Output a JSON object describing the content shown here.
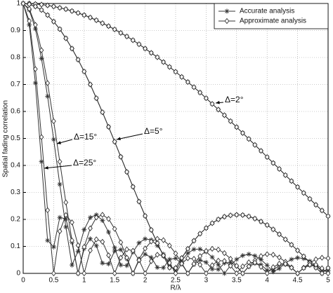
{
  "chart_data": {
    "type": "line",
    "xlabel": "R/λ",
    "ylabel": "Spatial fading correlation",
    "x": [
      0,
      0.1,
      0.2,
      0.3,
      0.4,
      0.5,
      0.6,
      0.7,
      0.8,
      0.9,
      1,
      1.1,
      1.2,
      1.3,
      1.4,
      1.5,
      1.6,
      1.7,
      1.8,
      1.9,
      2,
      2.1,
      2.2,
      2.3,
      2.4,
      2.5,
      2.6,
      2.7,
      2.8,
      2.9,
      3,
      3.1,
      3.2,
      3.3,
      3.4,
      3.5,
      3.6,
      3.7,
      3.8,
      3.9,
      4,
      4.1,
      4.2,
      4.3,
      4.4,
      4.5,
      4.6,
      4.7,
      4.8,
      4.9,
      5
    ],
    "xlim": [
      0,
      5
    ],
    "ylim": [
      0,
      1
    ],
    "xticks": [
      0,
      0.5,
      1,
      1.5,
      2,
      2.5,
      3,
      3.5,
      4,
      4.5,
      5
    ],
    "yticks": [
      0,
      0.1,
      0.2,
      0.3,
      0.4,
      0.5,
      0.6,
      0.7,
      0.8,
      0.9,
      1
    ],
    "grid": true,
    "legend": "upper right",
    "annotations": [
      "Δ=2°",
      "Δ=5°",
      "Δ=15°",
      "Δ=25°"
    ],
    "series": [
      {
        "name": "Accurate analysis",
        "marker": "asterisk",
        "color": "#333333",
        "values": [
          1,
          1,
          0.998,
          0.996,
          0.993,
          0.989,
          0.984,
          0.979,
          0.972,
          0.965,
          0.957,
          0.948,
          0.938,
          0.927,
          0.916,
          0.904,
          0.891,
          0.878,
          0.864,
          0.849,
          0.833,
          0.817,
          0.801,
          0.783,
          0.765,
          0.747,
          0.728,
          0.709,
          0.69,
          0.67,
          0.649,
          0.628,
          0.607,
          0.586,
          0.564,
          0.542,
          0.52,
          0.498,
          0.476,
          0.454,
          0.431,
          0.409,
          0.387,
          0.364,
          0.342,
          0.32,
          0.298,
          0.276,
          0.254,
          0.233,
          0.212
        ]
      },
      {
        "name": "Accurate analysis",
        "marker": "asterisk",
        "color": "#333333",
        "values": [
          1,
          0.997,
          0.989,
          0.976,
          0.957,
          0.933,
          0.905,
          0.871,
          0.833,
          0.792,
          0.748,
          0.7,
          0.649,
          0.597,
          0.543,
          0.488,
          0.432,
          0.376,
          0.321,
          0.266,
          0.213,
          0.161,
          0.112,
          0.065,
          0.021,
          0.02,
          0.057,
          0.091,
          0.121,
          0.147,
          0.168,
          0.186,
          0.2,
          0.21,
          0.215,
          0.217,
          0.216,
          0.211,
          0.203,
          0.192,
          0.179,
          0.163,
          0.145,
          0.126,
          0.106,
          0.085,
          0.063,
          0.041,
          0.021,
          0,
          0.02
        ]
      },
      {
        "name": "Accurate analysis",
        "marker": "asterisk",
        "color": "#333333",
        "values": [
          1,
          0.976,
          0.906,
          0.796,
          0.656,
          0.496,
          0.33,
          0.172,
          0.031,
          0.082,
          0.162,
          0.207,
          0.217,
          0.196,
          0.153,
          0.095,
          0.031,
          0.029,
          0.079,
          0.113,
          0.128,
          0.124,
          0.103,
          0.071,
          0.031,
          0.01,
          0.047,
          0.075,
          0.089,
          0.09,
          0.08,
          0.06,
          0.032,
          0,
          0.029,
          0.052,
          0.066,
          0.071,
          0.065,
          0.051,
          0.03,
          0.006,
          0.018,
          0.038,
          0.052,
          0.058,
          0.055,
          0.045,
          0.03,
          0.01,
          0.01
        ]
      },
      {
        "name": "Accurate analysis",
        "marker": "asterisk",
        "color": "#333333",
        "values": [
          1,
          0.921,
          0.705,
          0.414,
          0.122,
          0.098,
          0.207,
          0.202,
          0.115,
          0,
          0.092,
          0.128,
          0.103,
          0.038,
          0.035,
          0.083,
          0.088,
          0.054,
          0,
          0.048,
          0.071,
          0.059,
          0.022,
          0.021,
          0.052,
          0.056,
          0.035,
          0,
          0.033,
          0.049,
          0.041,
          0.016,
          0.015,
          0.038,
          0.041,
          0.026,
          0,
          0.025,
          0.037,
          0.032,
          0.012,
          0.012,
          0.03,
          0.033,
          0.021,
          0,
          0.02,
          0.03,
          0.026,
          0.01,
          0.01
        ]
      },
      {
        "name": "Approximate analysis",
        "marker": "diamond",
        "color": "#333333",
        "values": [
          1,
          1,
          0.998,
          0.996,
          0.993,
          0.989,
          0.984,
          0.979,
          0.972,
          0.965,
          0.957,
          0.948,
          0.938,
          0.927,
          0.916,
          0.904,
          0.891,
          0.878,
          0.864,
          0.849,
          0.833,
          0.817,
          0.801,
          0.783,
          0.765,
          0.747,
          0.728,
          0.709,
          0.69,
          0.67,
          0.649,
          0.628,
          0.607,
          0.586,
          0.564,
          0.542,
          0.52,
          0.498,
          0.476,
          0.454,
          0.431,
          0.409,
          0.387,
          0.364,
          0.342,
          0.32,
          0.298,
          0.276,
          0.254,
          0.233,
          0.212
        ]
      },
      {
        "name": "Approximate analysis",
        "marker": "diamond",
        "color": "#333333",
        "values": [
          1,
          0.997,
          0.989,
          0.976,
          0.957,
          0.933,
          0.905,
          0.871,
          0.833,
          0.792,
          0.748,
          0.7,
          0.649,
          0.597,
          0.543,
          0.488,
          0.432,
          0.376,
          0.321,
          0.266,
          0.213,
          0.161,
          0.112,
          0.065,
          0.021,
          0.02,
          0.057,
          0.091,
          0.121,
          0.147,
          0.168,
          0.186,
          0.2,
          0.21,
          0.215,
          0.217,
          0.216,
          0.211,
          0.203,
          0.192,
          0.179,
          0.163,
          0.145,
          0.126,
          0.106,
          0.085,
          0.063,
          0.041,
          0.021,
          0,
          0.02
        ]
      },
      {
        "name": "Approximate analysis",
        "marker": "diamond",
        "color": "#333333",
        "values": [
          1,
          0.98,
          0.921,
          0.827,
          0.705,
          0.564,
          0.414,
          0.263,
          0.122,
          0,
          0.098,
          0.167,
          0.207,
          0.217,
          0.202,
          0.165,
          0.115,
          0.058,
          0,
          0.052,
          0.092,
          0.118,
          0.128,
          0.123,
          0.103,
          0.074,
          0.038,
          0,
          0.035,
          0.064,
          0.083,
          0.091,
          0.088,
          0.075,
          0.054,
          0.028,
          0,
          0.026,
          0.048,
          0.064,
          0.071,
          0.069,
          0.059,
          0.043,
          0.022,
          0,
          0.021,
          0.039,
          0.052,
          0.058,
          0.056
        ]
      },
      {
        "name": "Approximate analysis",
        "marker": "diamond",
        "color": "#333333",
        "values": [
          1,
          0.935,
          0.757,
          0.505,
          0.234,
          0,
          0.156,
          0.216,
          0.189,
          0.104,
          0,
          0.085,
          0.126,
          0.117,
          0.067,
          0,
          0.058,
          0.089,
          0.084,
          0.049,
          0,
          0.045,
          0.069,
          0.066,
          0.039,
          0,
          0.036,
          0.056,
          0.054,
          0.032,
          0,
          0.03,
          0.047,
          0.046,
          0.028,
          0,
          0.026,
          0.041,
          0.04,
          0.024,
          0,
          0.023,
          0.036,
          0.035,
          0.021,
          0,
          0.02,
          0.032,
          0.032,
          0.019,
          0
        ]
      }
    ]
  }
}
